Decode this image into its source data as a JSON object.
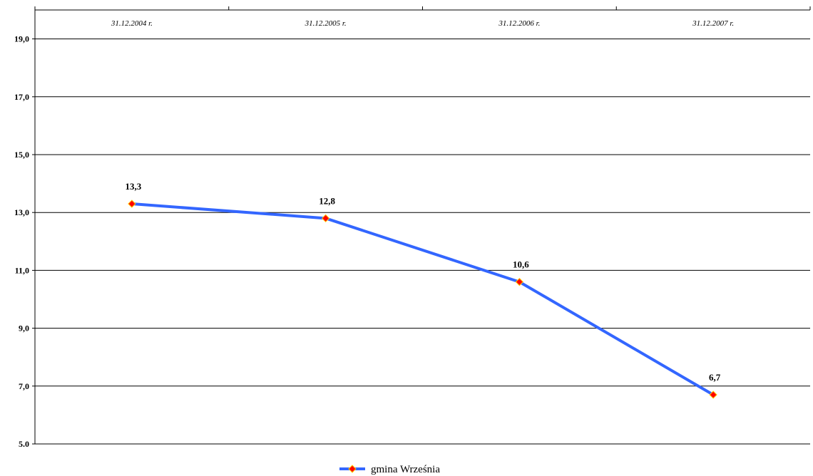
{
  "chart_data": {
    "type": "line",
    "categories": [
      "31.12.2004 r.",
      "31.12.2005 r.",
      "31.12.2006 r.",
      "31.12.2007 r."
    ],
    "series": [
      {
        "name": "gmina Września",
        "values": [
          13.3,
          12.8,
          10.6,
          6.7
        ],
        "value_labels": [
          "13,3",
          "12,8",
          "10,6",
          "6,7"
        ],
        "line_color": "#3366ff",
        "marker_color": "#ff0000",
        "marker_border": "#ffcc00",
        "marker": "diamond"
      }
    ],
    "ylim": [
      5.0,
      20.0
    ],
    "y_ticks": [
      5.0,
      7.0,
      9.0,
      11.0,
      13.0,
      15.0,
      17.0,
      19.0
    ],
    "y_tick_labels": [
      "5.0",
      "7,0",
      "9,0",
      "11,0",
      "13,0",
      "15,0",
      "17,0",
      "19,0"
    ],
    "x_axis_position": "top",
    "grid": true,
    "legend_position": "bottom-center",
    "title": "",
    "xlabel": "",
    "ylabel": ""
  }
}
